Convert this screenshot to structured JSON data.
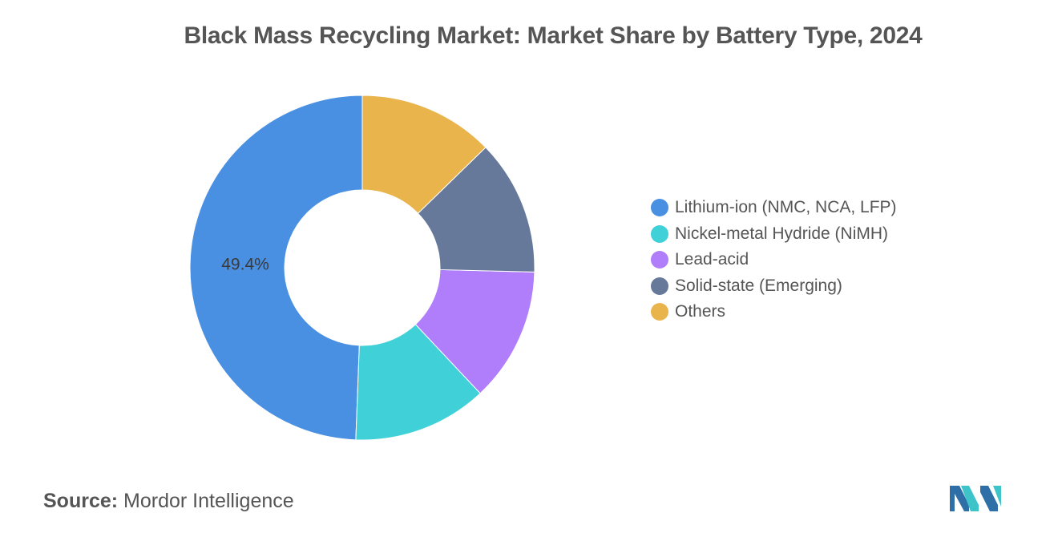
{
  "title": "Black Mass Recycling Market: Market Share by Battery Type, 2024",
  "chart_data": {
    "type": "pie",
    "variant": "donut",
    "title": "Black Mass Recycling Market: Market Share by Battery Type, 2024",
    "categories": [
      "Lithium-ion (NMC, NCA, LFP)",
      "Nickel-metal Hydride (NiMH)",
      "Lead-acid",
      "Solid-state (Emerging)",
      "Others"
    ],
    "values": [
      49.4,
      12.6,
      12.6,
      12.7,
      12.7
    ],
    "colors": [
      "#4a90e2",
      "#3fd0d8",
      "#b17efb",
      "#66799a",
      "#e9b44c"
    ],
    "data_labels": [
      {
        "category": "Lithium-ion (NMC, NCA, LFP)",
        "text": "49.4%"
      }
    ],
    "start": "top",
    "direction": "counterclockwise",
    "legend_position": "right"
  },
  "source": {
    "label": "Source:",
    "value": "Mordor Intelligence"
  }
}
